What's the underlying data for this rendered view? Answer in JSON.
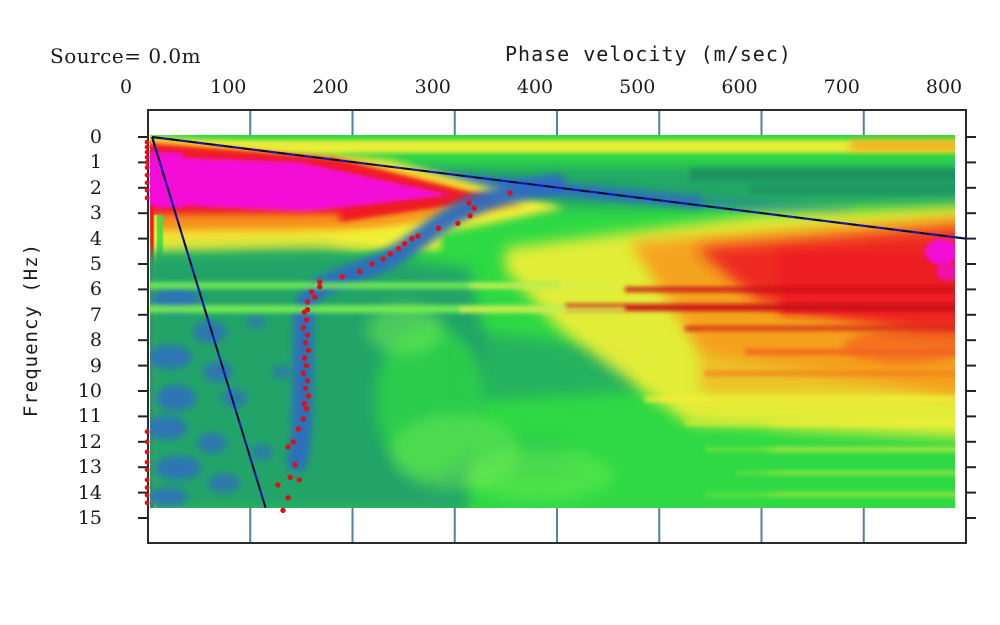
{
  "title": "Source= 0.0m",
  "colors": {
    "green": "#2fd944",
    "lightgreen": "#77ee52",
    "teal": "#23a26a",
    "darkteal": "#1e8d60",
    "blue": "#2f6cc1",
    "navy": "#1718a6",
    "dash": "#0c0c14",
    "yellow": "#f2ef38",
    "yellowgreen": "#d8ee4e",
    "orange": "#f79c1e",
    "orangered": "#e84d16",
    "red": "#ee1c24",
    "darkred": "#c81016",
    "magenta": "#f311d6",
    "frame": "#2b2b2b",
    "grid_tick": "#5581a3",
    "axis_tick": "#222222",
    "pick_dot": "#dd1117",
    "text": "#1b1b1b"
  },
  "chart_data": {
    "type": "heatmap",
    "title": "Source= 0.0m",
    "xlabel": "Phase velocity (m/sec)",
    "ylabel": "Frequency (Hz)",
    "xlim": [
      0,
      800
    ],
    "ylim": [
      0,
      15
    ],
    "xticks": [
      0,
      100,
      200,
      300,
      400,
      500,
      600,
      700,
      800
    ],
    "yticks": [
      0,
      1,
      2,
      3,
      4,
      5,
      6,
      7,
      8,
      9,
      10,
      11,
      12,
      13,
      14,
      15
    ],
    "legend": "none",
    "grid": "tick marks only (blue-gray stubs top and bottom, black stubs left and right)",
    "colormap": "rainbow amplitude: blue=low, green=medium, yellow/orange/red=high, magenta=maximum",
    "data_extent": {
      "velocity_mps": [
        0,
        790
      ],
      "frequency_hz": [
        0,
        14.6
      ]
    },
    "hot_regions": [
      {
        "label": "fundamental-mode energy blob",
        "frequency_hz": [
          0.8,
          2.6
        ],
        "velocity_mps": [
          0,
          300
        ],
        "peak_color": "magenta"
      },
      {
        "label": "high-velocity energy blob",
        "frequency_hz": [
          3.3,
          9.0
        ],
        "velocity_mps": [
          400,
          790
        ],
        "peak_color": "magenta",
        "peak_at": {
          "frequency_hz": 4.6,
          "velocity_mps": 780
        }
      },
      {
        "label": "near-zero-velocity edge artifact",
        "frequency_hz": [
          0,
          14.6
        ],
        "velocity_mps": [
          0,
          10
        ],
        "peak_color": "red"
      },
      {
        "label": "top edge band",
        "frequency_hz": [
          0.2,
          0.6
        ],
        "velocity_mps": [
          0,
          790
        ],
        "peak_color": "yellow"
      },
      {
        "label": "dark red harmonic streaks",
        "frequency_hz": [
          6.0,
          8.5
        ],
        "velocity_mps": [
          400,
          790
        ],
        "peak_color": "dark red"
      },
      {
        "label": "low-amplitude trough with picks",
        "frequency_hz": [
          2,
          14.6
        ],
        "velocity_mps": [
          120,
          300
        ],
        "peak_color": "blue"
      },
      {
        "label": "low-amplitude mottled zone",
        "frequency_hz": [
          8,
          14.6
        ],
        "velocity_mps": [
          0,
          120
        ],
        "peak_color": "blue on teal"
      }
    ],
    "series": [
      {
        "name": "dispersion-curve picks (red dots)",
        "points_fv": [
          [
            2.2,
            354
          ],
          [
            2.6,
            314
          ],
          [
            2.8,
            319
          ],
          [
            3.1,
            315
          ],
          [
            3.4,
            303
          ],
          [
            3.6,
            284
          ],
          [
            3.9,
            264
          ],
          [
            4.0,
            258
          ],
          [
            4.2,
            251
          ],
          [
            4.4,
            245
          ],
          [
            4.6,
            237
          ],
          [
            4.8,
            230
          ],
          [
            5.0,
            219
          ],
          [
            5.3,
            207
          ],
          [
            5.5,
            190
          ],
          [
            5.7,
            168
          ],
          [
            5.9,
            168
          ],
          [
            6.1,
            160
          ],
          [
            6.3,
            163
          ],
          [
            6.5,
            156
          ],
          [
            6.8,
            156
          ],
          [
            6.9,
            153
          ],
          [
            7.2,
            155
          ],
          [
            7.5,
            152
          ],
          [
            7.8,
            156
          ],
          [
            8.1,
            154
          ],
          [
            8.4,
            157
          ],
          [
            8.7,
            153
          ],
          [
            9.0,
            155
          ],
          [
            9.3,
            152
          ],
          [
            9.6,
            156
          ],
          [
            9.9,
            154
          ],
          [
            10.2,
            157
          ],
          [
            10.5,
            153
          ],
          [
            10.7,
            155
          ],
          [
            11.1,
            152
          ],
          [
            11.5,
            147
          ],
          [
            12.0,
            142
          ],
          [
            12.2,
            137
          ],
          [
            12.9,
            144
          ],
          [
            13.4,
            139
          ],
          [
            13.5,
            148
          ],
          [
            13.7,
            127
          ],
          [
            14.2,
            137
          ],
          [
            14.7,
            132
          ]
        ]
      },
      {
        "name": "near-zero-velocity picks (red dots at left edge)",
        "points_fv": [
          [
            0.2,
            2
          ],
          [
            0.4,
            2
          ],
          [
            0.6,
            2
          ],
          [
            0.8,
            2
          ],
          [
            1.0,
            2
          ],
          [
            1.2,
            2
          ],
          [
            1.5,
            2
          ],
          [
            1.8,
            2
          ],
          [
            2.1,
            2
          ],
          [
            2.4,
            2
          ],
          [
            11.6,
            2
          ],
          [
            12.0,
            2
          ],
          [
            12.4,
            2
          ],
          [
            12.8,
            2
          ],
          [
            13.1,
            2
          ],
          [
            13.5,
            2
          ],
          [
            13.8,
            2
          ],
          [
            14.1,
            2
          ],
          [
            14.4,
            2
          ]
        ]
      }
    ],
    "overlay_lines": [
      {
        "name": "resolution limit line (shallow)",
        "from_fv": [
          0,
          4
        ],
        "to_fv": [
          4.0,
          800
        ],
        "style": "navy with black dashes"
      },
      {
        "name": "resolution limit line (steep)",
        "from_fv": [
          0,
          4
        ],
        "to_fv": [
          14.6,
          115
        ],
        "style": "navy with black dashes"
      }
    ]
  }
}
